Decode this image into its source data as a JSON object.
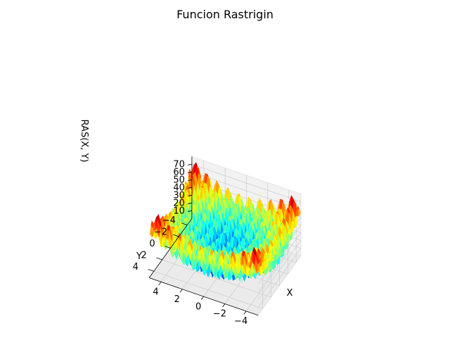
{
  "chart_data": {
    "type": "surface3d",
    "title": "Funcion Rastrigin",
    "xlabel": "X",
    "ylabel": "Y",
    "zlabel": "RAS(X, Y)",
    "function": "20 + x^2 + y^2 - 10*(cos(2*pi*x) + cos(2*pi*y))",
    "xlim": [
      -5.12,
      5.12
    ],
    "ylim": [
      -5.12,
      5.12
    ],
    "zlim": [
      0,
      80
    ],
    "x_ticks": [
      4,
      2,
      0,
      -2,
      -4
    ],
    "y_ticks": [
      -4,
      -2,
      0,
      2,
      4
    ],
    "z_ticks": [
      10,
      20,
      30,
      40,
      50,
      60,
      70
    ],
    "colormap": "jet",
    "pane_color": "#f2f2f2",
    "grid_color": "#d0d0d0"
  }
}
